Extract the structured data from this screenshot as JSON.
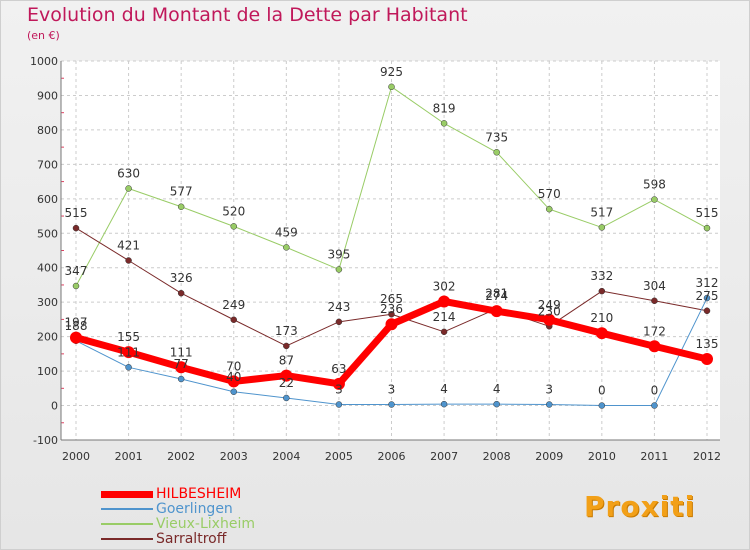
{
  "chart_data": {
    "type": "line",
    "title": "Evolution du Montant de la Dette par Habitant",
    "subtitle": "(en €)",
    "xlabel": "",
    "ylabel": "",
    "ylim": [
      -100,
      1000
    ],
    "yticks": [
      -100,
      0,
      100,
      200,
      300,
      400,
      500,
      600,
      700,
      800,
      900,
      1000
    ],
    "categories": [
      "2000",
      "2001",
      "2002",
      "2003",
      "2004",
      "2005",
      "2006",
      "2007",
      "2008",
      "2009",
      "2010",
      "2011",
      "2012"
    ],
    "grid": true,
    "legend_position": "bottom-left",
    "series": [
      {
        "name": "HILBESHEIM",
        "color": "#ff0000",
        "values": [
          197,
          155,
          111,
          70,
          87,
          63,
          236,
          302,
          274,
          249,
          210,
          172,
          135
        ]
      },
      {
        "name": "Goerlingen",
        "color": "#4f94cd",
        "values": [
          188,
          111,
          77,
          40,
          22,
          3,
          3,
          4,
          4,
          3,
          0,
          0,
          312
        ]
      },
      {
        "name": "Vieux-Lixheim",
        "color": "#99cc66",
        "values": [
          347,
          630,
          577,
          520,
          459,
          395,
          925,
          819,
          735,
          570,
          517,
          598,
          515
        ]
      },
      {
        "name": "Sarraltroff",
        "color": "#7a2a2a",
        "values": [
          515,
          421,
          326,
          249,
          173,
          243,
          265,
          214,
          281,
          230,
          332,
          304,
          275
        ]
      }
    ]
  },
  "logo": {
    "text": "Proxiti"
  }
}
